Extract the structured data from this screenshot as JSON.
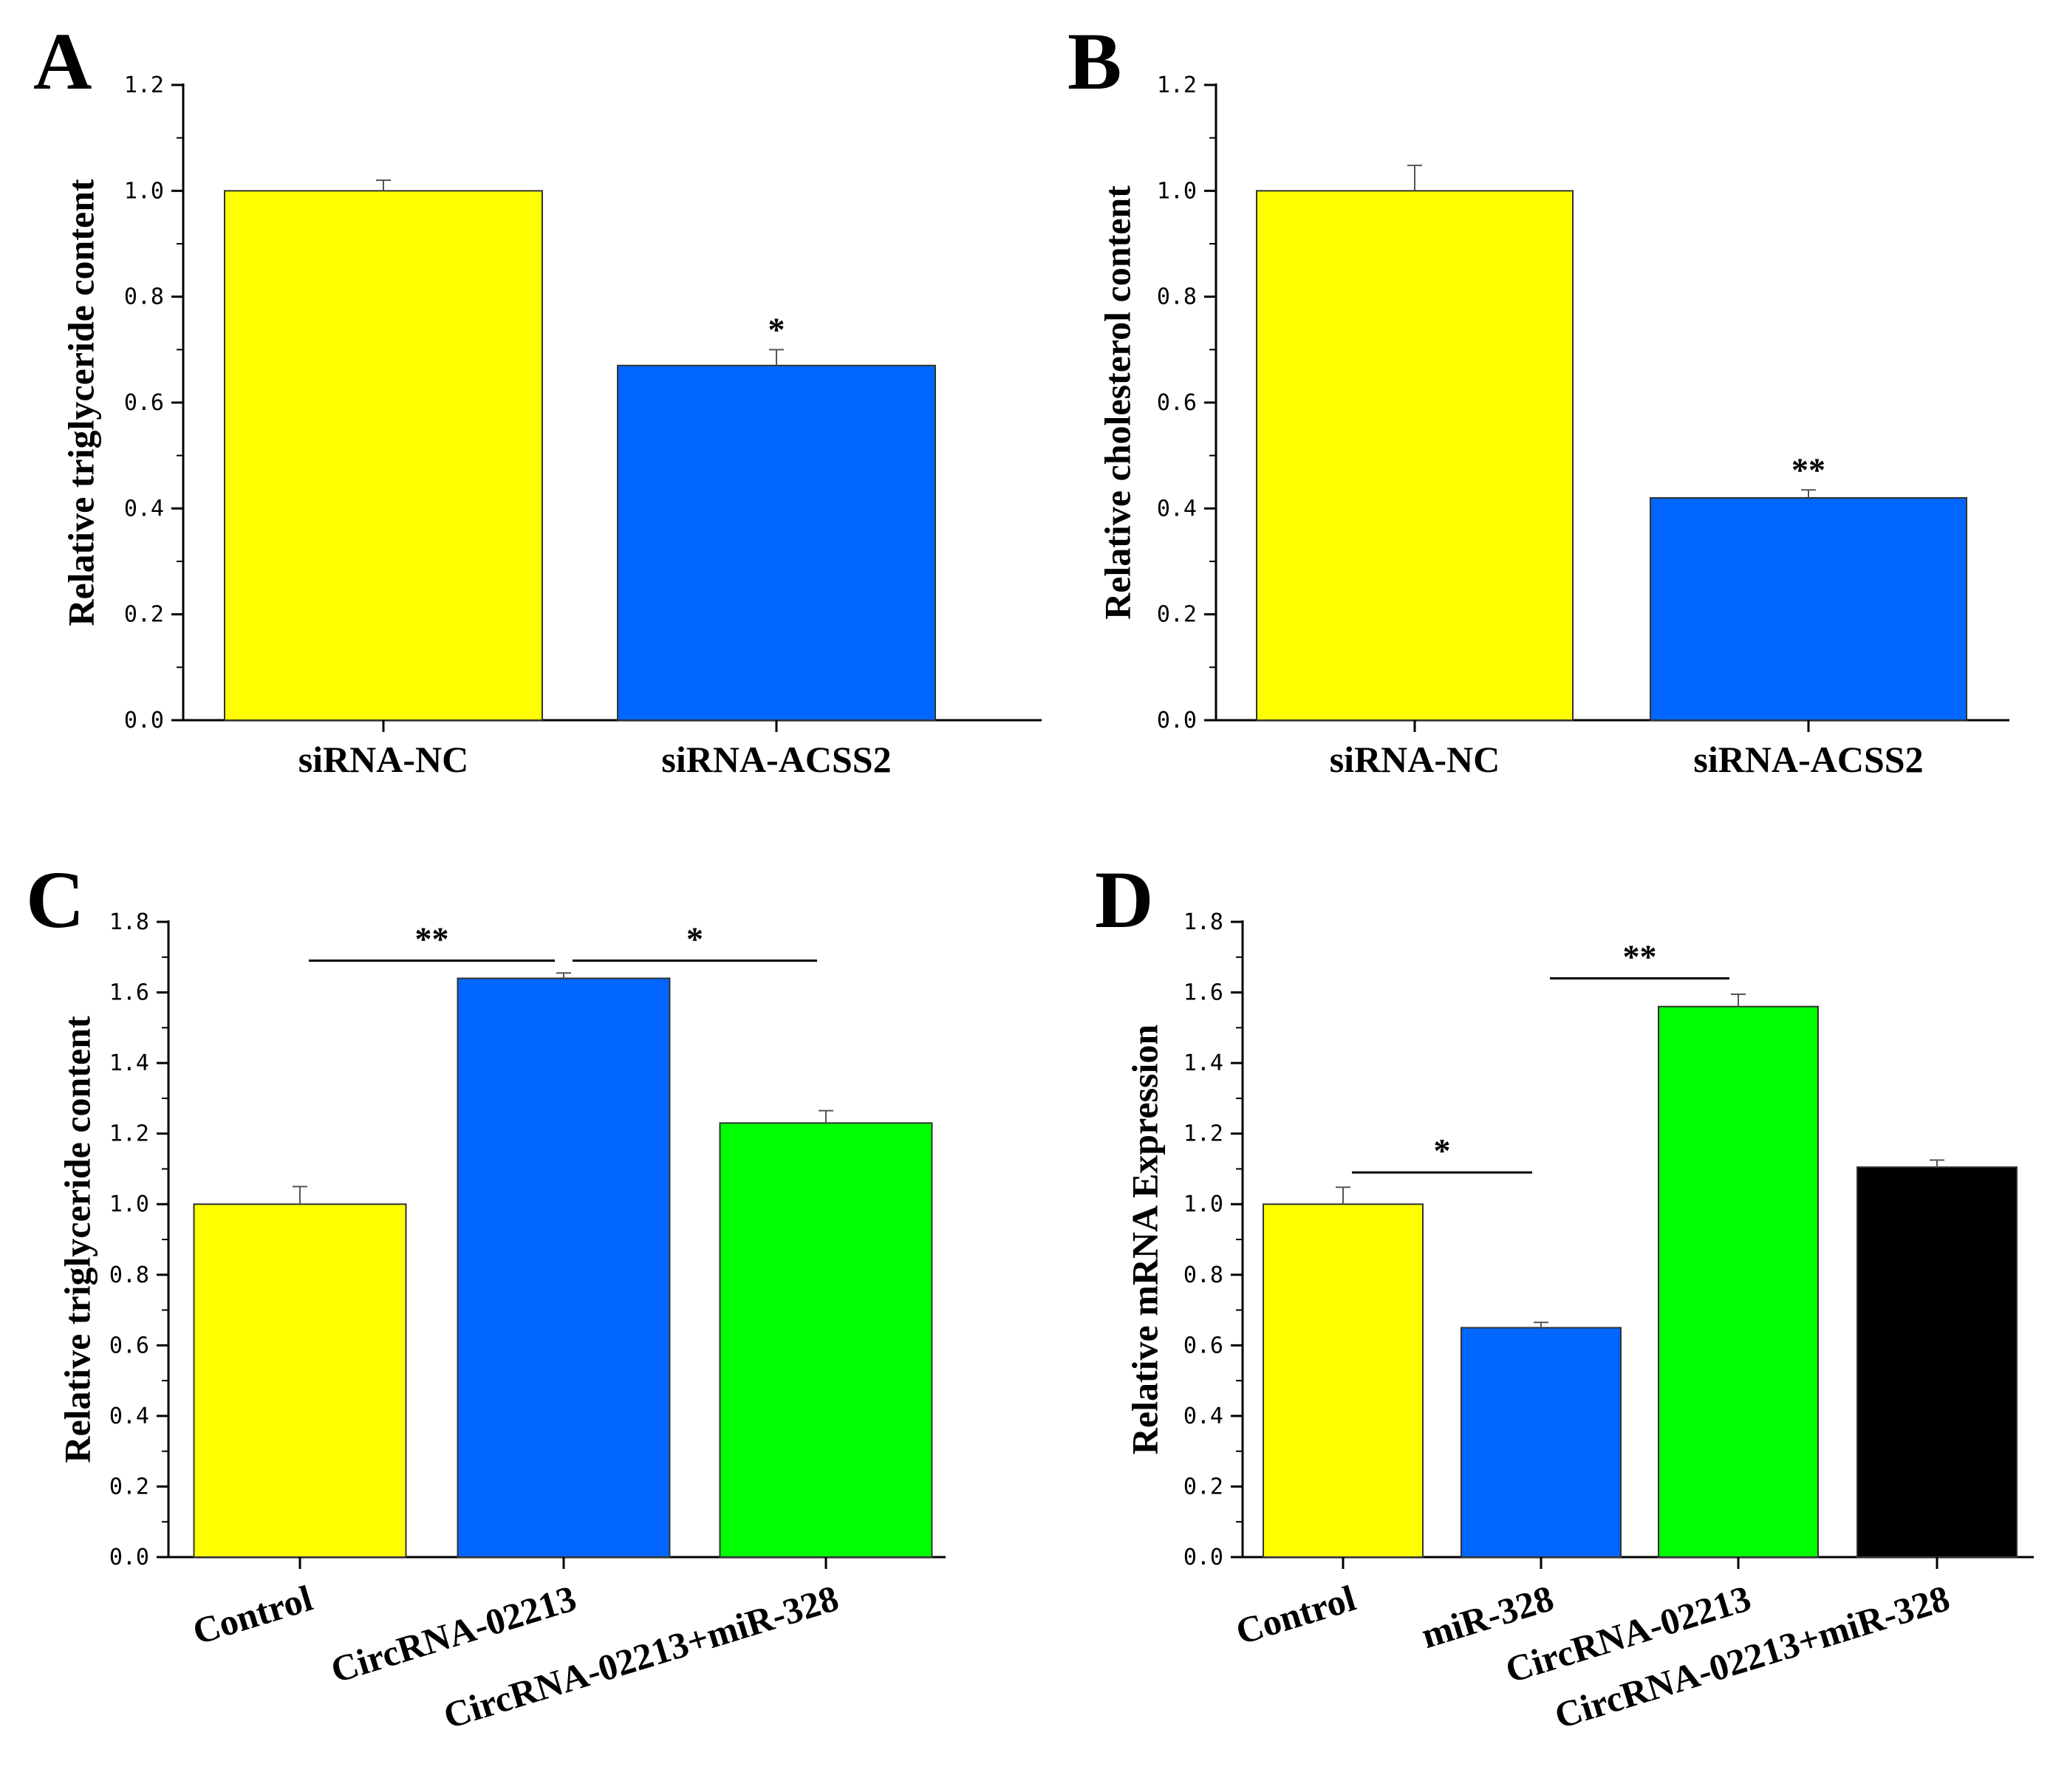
{
  "figure_label": "Four bar-chart panels A–D",
  "chart_data": [
    {
      "panel": "A",
      "type": "bar",
      "ylabel": "Relative triglyceride content",
      "ylim": [
        0,
        1.2
      ],
      "yticks": [
        "0.0",
        "0.2",
        "0.4",
        "0.6",
        "0.8",
        "1.0",
        "1.2"
      ],
      "categories": [
        "siRNA-NC",
        "siRNA-ACSS2"
      ],
      "values": [
        1.0,
        0.67
      ],
      "errors": [
        0.02,
        0.03
      ],
      "colors": [
        "#ffff00",
        "#0066ff"
      ],
      "bar_sig": [
        "",
        "*"
      ],
      "brackets": [],
      "rotate_labels": false
    },
    {
      "panel": "B",
      "type": "bar",
      "ylabel": "Relative cholesterol content",
      "ylim": [
        0,
        1.2
      ],
      "yticks": [
        "0.0",
        "0.2",
        "0.4",
        "0.6",
        "0.8",
        "1.0",
        "1.2"
      ],
      "categories": [
        "siRNA-NC",
        "siRNA-ACSS2"
      ],
      "values": [
        1.0,
        0.42
      ],
      "errors": [
        0.048,
        0.015
      ],
      "colors": [
        "#ffff00",
        "#0066ff"
      ],
      "bar_sig": [
        "",
        "**"
      ],
      "brackets": [],
      "rotate_labels": false
    },
    {
      "panel": "C",
      "type": "bar",
      "ylabel": "Relative triglyceride content",
      "ylim": [
        0,
        1.8
      ],
      "yticks": [
        "0.0",
        "0.2",
        "0.4",
        "0.6",
        "0.8",
        "1.0",
        "1.2",
        "1.4",
        "1.6",
        "1.8"
      ],
      "categories": [
        "Control",
        "CircRNA-02213",
        "CircRNA-02213+miR-328"
      ],
      "values": [
        1.0,
        1.64,
        1.23
      ],
      "errors": [
        0.05,
        0.015,
        0.035
      ],
      "colors": [
        "#ffff00",
        "#0066ff",
        "#00ff00"
      ],
      "bar_sig": [
        "",
        "",
        ""
      ],
      "brackets": [
        {
          "from": 0,
          "to": 1,
          "y": 1.69,
          "label": "**"
        },
        {
          "from": 1,
          "to": 2,
          "y": 1.69,
          "label": "*"
        }
      ],
      "rotate_labels": true
    },
    {
      "panel": "D",
      "type": "bar",
      "ylabel": "Relative mRNA Expression",
      "ylim": [
        0,
        1.8
      ],
      "yticks": [
        "0.0",
        "0.2",
        "0.4",
        "0.6",
        "0.8",
        "1.0",
        "1.2",
        "1.4",
        "1.6",
        "1.8"
      ],
      "categories": [
        "Control",
        "miR-328",
        "CircRNA-02213",
        "CircRNA-02213+miR-328"
      ],
      "values": [
        1.0,
        0.65,
        1.56,
        1.105
      ],
      "errors": [
        0.048,
        0.015,
        0.035,
        0.02
      ],
      "colors": [
        "#ffff00",
        "#0066ff",
        "#00ff00",
        "#000000"
      ],
      "bar_sig": [
        "",
        "",
        "",
        ""
      ],
      "brackets": [
        {
          "from": 0,
          "to": 1,
          "y": 1.09,
          "label": "*"
        },
        {
          "from": 1,
          "to": 2,
          "y": 1.64,
          "label": "**"
        }
      ],
      "rotate_labels": true
    }
  ]
}
